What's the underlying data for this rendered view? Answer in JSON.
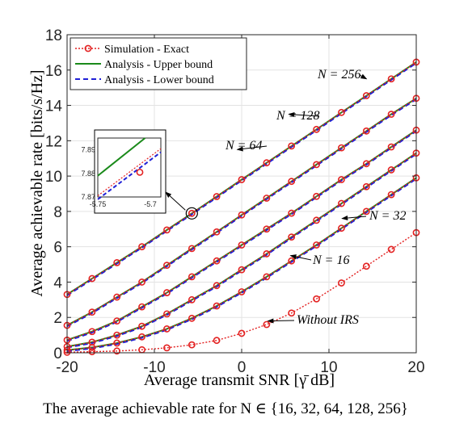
{
  "caption": "The average achievable rate for N ∈ {16, 32, 64, 128, 256}",
  "chart_data": {
    "type": "line",
    "title": "",
    "xlabel": "Average transmit SNR [γ̄ dB]",
    "ylabel": "Average achievable rate [bits/s/Hz]",
    "xlim": [
      -20,
      20
    ],
    "ylim": [
      0,
      18
    ],
    "xticks": [
      -20,
      -10,
      0,
      10,
      20
    ],
    "yticks": [
      0,
      2,
      4,
      6,
      8,
      10,
      12,
      14,
      16,
      18
    ],
    "grid": true,
    "legend_position": "top-left",
    "x": [
      -20,
      -17.14,
      -14.29,
      -11.43,
      -8.57,
      -5.71,
      -2.86,
      0,
      2.86,
      5.71,
      8.57,
      11.43,
      14.29,
      17.14,
      20
    ],
    "legend": [
      {
        "label": "Simulation - Exact",
        "color": "#e32222",
        "style": "dotted-circle"
      },
      {
        "label": "Analysis - Upper bound",
        "color": "#1a8a1a",
        "style": "solid"
      },
      {
        "label": "Analysis - Lower bound",
        "color": "#1f1fd6",
        "style": "dashed"
      }
    ],
    "series": [
      {
        "name": "N = 256",
        "values": [
          3.3,
          4.2,
          5.1,
          6.0,
          6.95,
          7.89,
          8.84,
          9.8,
          10.75,
          11.7,
          12.64,
          13.6,
          14.55,
          15.5,
          16.45
        ]
      },
      {
        "name": "N = 128",
        "values": [
          1.55,
          2.3,
          3.15,
          4.0,
          4.95,
          5.9,
          6.84,
          7.8,
          8.75,
          9.7,
          10.65,
          11.6,
          12.55,
          13.5,
          14.4
        ]
      },
      {
        "name": "N = 64",
        "values": [
          0.72,
          1.2,
          1.8,
          2.6,
          3.4,
          4.3,
          5.2,
          6.1,
          7.0,
          7.9,
          8.85,
          9.8,
          10.7,
          11.65,
          12.6
        ]
      },
      {
        "name": "N = 32",
        "values": [
          0.35,
          0.6,
          1.0,
          1.5,
          2.2,
          3.0,
          3.8,
          4.7,
          5.6,
          6.55,
          7.5,
          8.45,
          9.4,
          10.35,
          11.3
        ]
      },
      {
        "name": "N = 16",
        "values": [
          0.15,
          0.3,
          0.55,
          0.9,
          1.35,
          1.95,
          2.65,
          3.45,
          4.3,
          5.2,
          6.1,
          7.05,
          8.0,
          8.95,
          9.9
        ]
      },
      {
        "name": "Without IRS",
        "values": [
          0.03,
          0.06,
          0.1,
          0.17,
          0.28,
          0.45,
          0.7,
          1.1,
          1.6,
          2.25,
          3.05,
          3.95,
          4.9,
          5.85,
          6.8
        ]
      }
    ],
    "annotations": [
      {
        "text": "N = 256",
        "x": 14.3,
        "y": 15.5
      },
      {
        "text": "N = 128",
        "x": 5.4,
        "y": 13.5
      },
      {
        "text": "N = 64",
        "x": -0.5,
        "y": 11.5
      },
      {
        "text": "N = 32",
        "x": 11.5,
        "y": 7.6
      },
      {
        "text": "N = 16",
        "x": 5.6,
        "y": 5.5
      },
      {
        "text": "Without IRS",
        "x": 3.0,
        "y": 1.8
      }
    ],
    "inset": {
      "xlim": [
        -5.75,
        -5.69
      ],
      "ylim": [
        7.87,
        7.895
      ],
      "xtick_labels": [
        "-5.75",
        "-5.7"
      ],
      "ytick_labels": [
        "7.87",
        "7.88",
        "7.89"
      ],
      "exact_point": {
        "x": -5.71,
        "y": 7.8805
      },
      "upper_bound": {
        "x": [
          -5.75,
          -5.705
        ],
        "y": [
          7.879,
          7.895
        ]
      },
      "lower_bound": {
        "x": [
          -5.75,
          -5.69
        ],
        "y": [
          7.869,
          7.889
        ]
      },
      "zoom_target": {
        "x": -5.71,
        "y": 7.89
      }
    }
  }
}
